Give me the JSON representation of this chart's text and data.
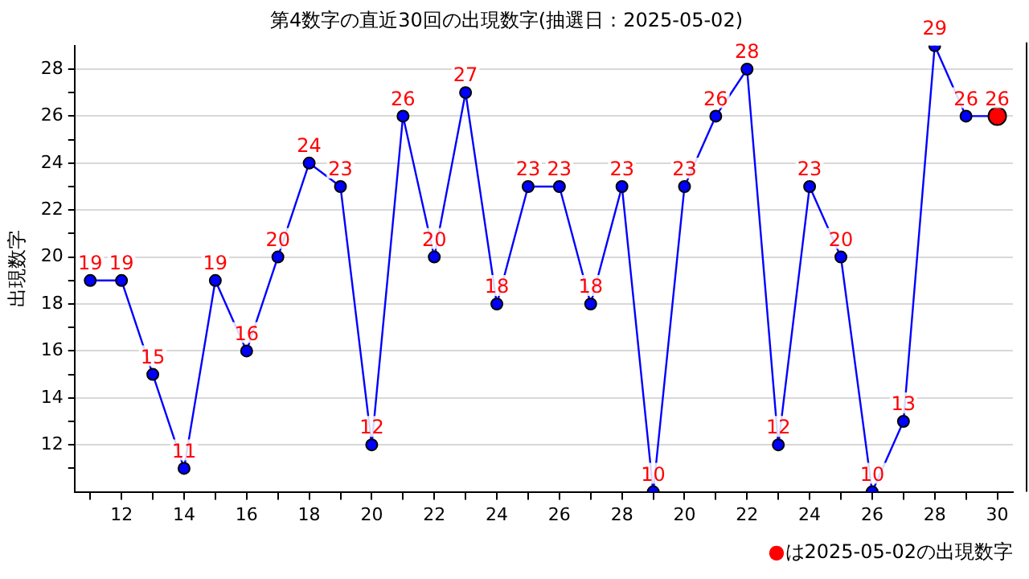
{
  "chart_data": {
    "type": "line",
    "title": "第4数字の直近30回の出現数字(抽選日：2025-05-02)",
    "ylabel": "出現数字",
    "categories": [
      null,
      "12",
      null,
      "14",
      null,
      "16",
      null,
      "18",
      null,
      "20",
      null,
      "22",
      null,
      "24",
      null,
      "26",
      null,
      "28",
      null,
      "20",
      null,
      "22",
      null,
      "24",
      null,
      "26",
      null,
      "28",
      null,
      "30"
    ],
    "series": [
      {
        "color": "#0000ff",
        "colors": [
          "#0000ff",
          "#0000ff",
          "#0000ff",
          "#0000ff",
          "#0000ff",
          "#0000ff",
          "#0000ff",
          "#0000ff",
          "#0000ff",
          "#0000ff",
          "#0000ff",
          "#0000ff",
          "#0000ff",
          "#0000ff",
          "#0000ff",
          "#0000ff",
          "#0000ff",
          "#0000ff",
          "#0000ff",
          "#0000ff",
          "#0000ff",
          "#0000ff",
          "#0000ff",
          "#0000ff",
          "#0000ff",
          "#0000ff",
          "#0000ff",
          "#0000ff",
          "#0000ff",
          "#ff0000"
        ],
        "values": [
          19,
          19,
          15,
          11,
          19,
          16,
          20,
          24,
          23,
          12,
          26,
          20,
          27,
          18,
          23,
          23,
          18,
          23,
          10,
          23,
          26,
          28,
          12,
          23,
          20,
          10,
          13,
          29,
          26,
          26
        ]
      }
    ],
    "ylim": [
      10,
      29
    ],
    "yticks": [
      {
        "value": 11,
        "label": null
      },
      12,
      {
        "value": 13,
        "label": null
      },
      14,
      {
        "value": 15,
        "label": null
      },
      16,
      {
        "value": 17,
        "label": null
      },
      18,
      {
        "value": 19,
        "label": null
      },
      20,
      {
        "value": 21,
        "label": null
      },
      22,
      {
        "value": 23,
        "label": null
      },
      24,
      {
        "value": 25,
        "label": null
      },
      26,
      {
        "value": 27,
        "label": null
      },
      28
    ],
    "grid": "y",
    "legend": false,
    "marker": "circle",
    "line_style": "solid",
    "data_labels": true,
    "annotations": [
      "●は2025-05-02の出現数字"
    ]
  }
}
